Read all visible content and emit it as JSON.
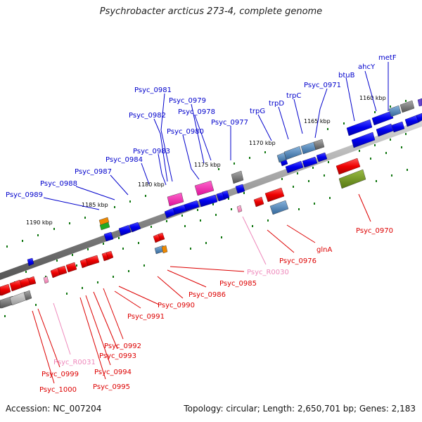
{
  "title": "Psychrobacter arcticus 273-4, complete genome",
  "footer": {
    "accession": "Accession: NC_007204",
    "stats": "Topology: circular; Length: 2,650,701 bp; Genes: 2,183"
  },
  "colors": {
    "forward_label": "#0000cc",
    "reverse_label": "#dd0000",
    "rna_label": "#ee88bb",
    "forward_gene": "#0000ee",
    "reverse_gene": "#ee0000",
    "rna_gene": "#ff88cc",
    "backbone": "#888888",
    "tick": "#117711"
  },
  "scale_labels": [
    "1160 kbp",
    "1165 kbp",
    "1170 kbp",
    "1175 kbp",
    "1180 kbp",
    "1185 kbp",
    "1190 kbp"
  ],
  "forward_labels": [
    "metF",
    "ahcY",
    "btuB",
    "Psyc_0971",
    "trpC",
    "trpD",
    "trpG",
    "Psyc_0977",
    "Psyc_0978",
    "Psyc_0979",
    "Psyc_0980",
    "Psyc_0981",
    "Psyc_0982",
    "Psyc_0983",
    "Psyc_0984",
    "Psyc_0987",
    "Psyc_0988",
    "Psyc_0989"
  ],
  "reverse_labels": [
    "Psyc_0970",
    "glnA",
    "Psyc_0976",
    "Psyc_R0030",
    "Psyc_0985",
    "Psyc_0986",
    "Psyc_0990",
    "Psyc_0991",
    "Psyc_0992",
    "Psyc_0993",
    "Psyc_0994",
    "Psyc_0995",
    "Psyc_R0031",
    "Psyc_0999",
    "Psyc_1000"
  ]
}
